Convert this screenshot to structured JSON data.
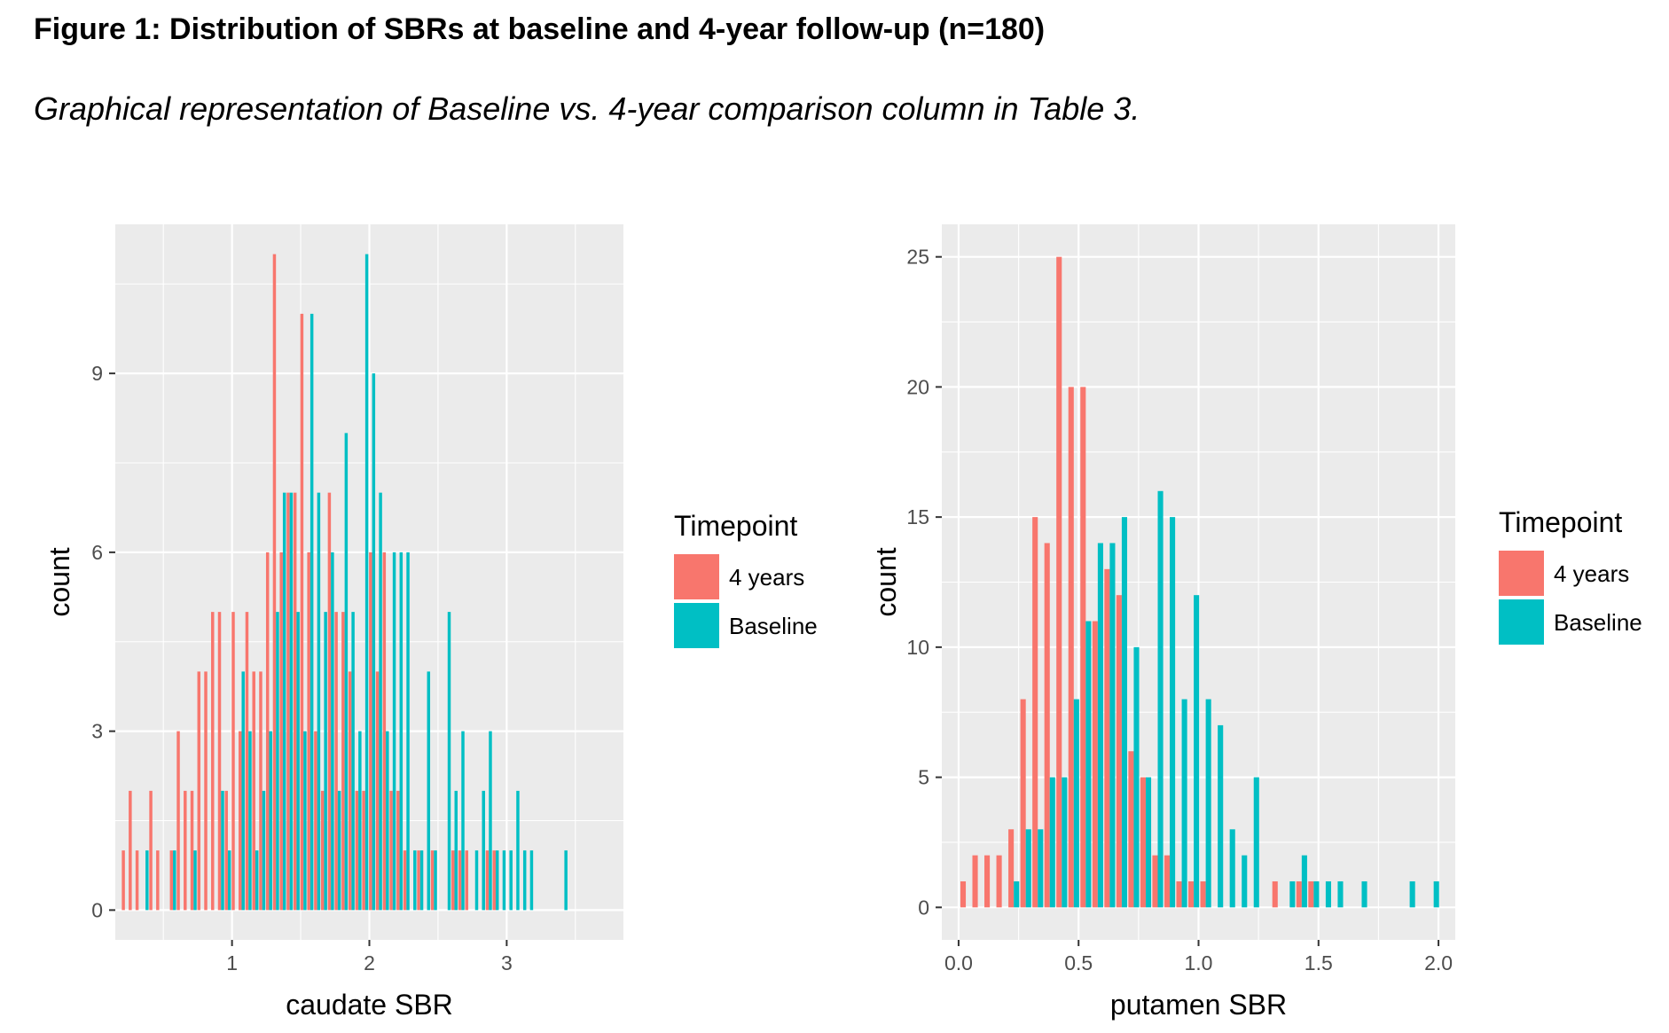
{
  "figure": {
    "title": "Figure 1: Distribution of SBRs at baseline and 4-year follow-up (n=180)",
    "subtitle": "Graphical representation of Baseline vs. 4-year comparison column in Table 3."
  },
  "colors": {
    "four_years": "#F8766D",
    "baseline": "#00BFC4",
    "panel_bg": "#EBEBEB",
    "grid": "#FFFFFF"
  },
  "chart_data": [
    {
      "type": "bar",
      "subtype": "histogram",
      "xlabel": "caudate SBR",
      "ylabel": "count",
      "xlim": [
        0.15,
        3.85
      ],
      "ylim": [
        -0.5,
        11.5
      ],
      "xticks": [
        1,
        2,
        3
      ],
      "yticks": [
        0,
        3,
        6,
        9
      ],
      "grid": true,
      "legend": {
        "title": "Timepoint",
        "position": "right",
        "entries": [
          "4 years",
          "Baseline"
        ]
      },
      "x": [
        0.22,
        0.27,
        0.32,
        0.37,
        0.42,
        0.47,
        0.52,
        0.57,
        0.62,
        0.67,
        0.72,
        0.77,
        0.82,
        0.87,
        0.92,
        0.97,
        1.02,
        1.07,
        1.12,
        1.17,
        1.22,
        1.27,
        1.32,
        1.37,
        1.42,
        1.47,
        1.52,
        1.57,
        1.62,
        1.67,
        1.72,
        1.77,
        1.82,
        1.87,
        1.92,
        1.97,
        2.02,
        2.07,
        2.12,
        2.17,
        2.22,
        2.27,
        2.32,
        2.37,
        2.42,
        2.47,
        2.52,
        2.57,
        2.62,
        2.67,
        2.72,
        2.77,
        2.82,
        2.87,
        2.92,
        2.97,
        3.02,
        3.07,
        3.12,
        3.17,
        3.22,
        3.27,
        3.32,
        3.37,
        3.42,
        3.47,
        3.52,
        3.57
      ],
      "series": [
        {
          "name": "4 years",
          "values": [
            1,
            2,
            1,
            0,
            2,
            1,
            0,
            1,
            3,
            2,
            2,
            4,
            4,
            5,
            5,
            2,
            5,
            3,
            5,
            4,
            4,
            6,
            11,
            6,
            7,
            7,
            10,
            6,
            3,
            2,
            7,
            5,
            5,
            4,
            2,
            2,
            6,
            4,
            6,
            2,
            2,
            1,
            0,
            1,
            0,
            1,
            0,
            0,
            1,
            1,
            1,
            0,
            0,
            1,
            1,
            0,
            0,
            0,
            0,
            0,
            0,
            0,
            0,
            0,
            0,
            0,
            0,
            0
          ]
        },
        {
          "name": "Baseline",
          "values": [
            0,
            0,
            0,
            1,
            0,
            0,
            0,
            1,
            0,
            0,
            1,
            0,
            0,
            0,
            2,
            1,
            0,
            4,
            3,
            1,
            2,
            3,
            5,
            7,
            7,
            5,
            3,
            10,
            7,
            5,
            6,
            2,
            8,
            5,
            3,
            11,
            9,
            7,
            3,
            6,
            6,
            6,
            1,
            1,
            4,
            1,
            0,
            5,
            2,
            3,
            0,
            1,
            2,
            3,
            1,
            1,
            1,
            2,
            1,
            1,
            0,
            0,
            0,
            0,
            1,
            0,
            0,
            0
          ]
        }
      ]
    },
    {
      "type": "bar",
      "subtype": "histogram",
      "xlabel": "putamen SBR",
      "ylabel": "count",
      "xlim": [
        -0.07,
        2.07
      ],
      "ylim": [
        -1.25,
        26.25
      ],
      "xticks": [
        0.0,
        0.5,
        1.0,
        1.5,
        2.0
      ],
      "xtick_labels": [
        "0.0",
        "0.5",
        "1.0",
        "1.5",
        "2.0"
      ],
      "yticks": [
        0,
        5,
        10,
        15,
        20,
        25
      ],
      "grid": true,
      "legend": {
        "title": "Timepoint",
        "position": "right",
        "entries": [
          "4 years",
          "Baseline"
        ]
      },
      "x": [
        0.03,
        0.08,
        0.13,
        0.18,
        0.23,
        0.28,
        0.33,
        0.38,
        0.43,
        0.48,
        0.53,
        0.58,
        0.63,
        0.68,
        0.73,
        0.78,
        0.83,
        0.88,
        0.93,
        0.98,
        1.03,
        1.08,
        1.13,
        1.18,
        1.23,
        1.28,
        1.33,
        1.38,
        1.43,
        1.48,
        1.53,
        1.58,
        1.63,
        1.68,
        1.73,
        1.78,
        1.83,
        1.88,
        1.93,
        1.98
      ],
      "series": [
        {
          "name": "4 years",
          "values": [
            1,
            2,
            2,
            2,
            3,
            8,
            15,
            14,
            25,
            20,
            20,
            11,
            13,
            12,
            6,
            5,
            2,
            2,
            1,
            1,
            1,
            0,
            0,
            0,
            0,
            0,
            1,
            0,
            1,
            1,
            0,
            0,
            0,
            0,
            0,
            0,
            0,
            0,
            0,
            0
          ]
        },
        {
          "name": "Baseline",
          "values": [
            0,
            0,
            0,
            0,
            1,
            3,
            3,
            5,
            5,
            8,
            11,
            14,
            14,
            15,
            10,
            5,
            16,
            15,
            8,
            12,
            8,
            7,
            3,
            2,
            5,
            0,
            0,
            1,
            2,
            1,
            1,
            1,
            0,
            1,
            0,
            0,
            0,
            1,
            0,
            1
          ]
        }
      ]
    }
  ]
}
